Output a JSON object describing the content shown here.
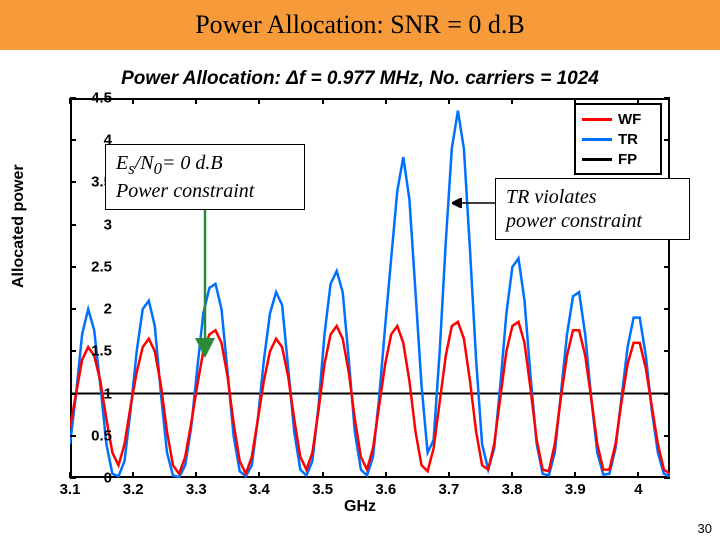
{
  "title": "Power Allocation: SNR = 0 d.B",
  "chart": {
    "title": "Power Allocation:  Δf = 0.977 MHz,   No. carriers = 1024",
    "ylabel": "Allocated power",
    "xlabel": "GHz",
    "xlim": [
      3.1,
      4.05
    ],
    "ylim": [
      0,
      4.5
    ],
    "xticks": [
      3.1,
      3.2,
      3.3,
      3.4,
      3.5,
      3.6,
      3.7,
      3.8,
      3.9,
      4.0
    ],
    "xtick_labels": [
      "3.1",
      "3.2",
      "3.3",
      "3.4",
      "3.5",
      "3.6",
      "3.7",
      "3.8",
      "3.9",
      "4"
    ],
    "yticks": [
      0,
      0.5,
      1,
      1.5,
      2,
      2.5,
      3,
      3.5,
      4,
      4.5
    ],
    "ytick_labels": [
      "0",
      "0.5",
      "1",
      "1.5",
      "2",
      "2.5",
      "3",
      "3.5",
      "4",
      "4.5"
    ],
    "background_color": "#ffffff",
    "series": {
      "WF": {
        "label": "WF",
        "color": "#ff0000",
        "width": 2.5,
        "y": [
          0.6,
          1.0,
          1.4,
          1.55,
          1.45,
          1.15,
          0.7,
          0.3,
          0.15,
          0.4,
          0.85,
          1.25,
          1.55,
          1.65,
          1.5,
          1.1,
          0.55,
          0.15,
          0.05,
          0.25,
          0.65,
          1.1,
          1.5,
          1.7,
          1.75,
          1.6,
          1.2,
          0.65,
          0.2,
          0.05,
          0.25,
          0.7,
          1.15,
          1.5,
          1.65,
          1.55,
          1.2,
          0.7,
          0.25,
          0.1,
          0.3,
          0.8,
          1.35,
          1.7,
          1.8,
          1.65,
          1.25,
          0.7,
          0.25,
          0.1,
          0.35,
          0.85,
          1.35,
          1.7,
          1.8,
          1.6,
          1.15,
          0.55,
          0.15,
          0.08,
          0.35,
          0.9,
          1.45,
          1.8,
          1.85,
          1.65,
          1.15,
          0.55,
          0.15,
          0.1,
          0.4,
          0.95,
          1.5,
          1.8,
          1.85,
          1.6,
          1.05,
          0.45,
          0.1,
          0.08,
          0.4,
          0.95,
          1.45,
          1.75,
          1.75,
          1.45,
          0.95,
          0.4,
          0.1,
          0.1,
          0.4,
          0.9,
          1.35,
          1.6,
          1.6,
          1.3,
          0.85,
          0.4,
          0.1,
          0.05
        ]
      },
      "TR": {
        "label": "TR",
        "color": "#0070ff",
        "width": 2.5,
        "y": [
          0.4,
          1.0,
          1.7,
          2.0,
          1.75,
          1.1,
          0.4,
          0.05,
          0.02,
          0.2,
          0.8,
          1.5,
          2.0,
          2.1,
          1.8,
          1.0,
          0.3,
          0.03,
          0.01,
          0.15,
          0.6,
          1.3,
          1.95,
          2.25,
          2.3,
          2.0,
          1.25,
          0.5,
          0.08,
          0.02,
          0.15,
          0.7,
          1.4,
          1.95,
          2.2,
          2.05,
          1.3,
          0.55,
          0.1,
          0.03,
          0.2,
          0.85,
          1.7,
          2.3,
          2.45,
          2.2,
          1.4,
          0.55,
          0.1,
          0.03,
          0.25,
          0.95,
          1.8,
          2.6,
          3.4,
          3.8,
          3.3,
          2.2,
          1.1,
          0.3,
          0.45,
          1.5,
          2.8,
          3.9,
          4.35,
          3.9,
          2.7,
          1.4,
          0.4,
          0.1,
          0.35,
          1.1,
          1.95,
          2.5,
          2.6,
          2.1,
          1.2,
          0.4,
          0.05,
          0.03,
          0.3,
          1.0,
          1.7,
          2.15,
          2.2,
          1.7,
          0.95,
          0.3,
          0.04,
          0.05,
          0.35,
          0.95,
          1.55,
          1.9,
          1.9,
          1.45,
          0.8,
          0.3,
          0.05,
          0.02
        ]
      },
      "FP": {
        "label": "FP",
        "color": "#000000",
        "width": 2,
        "y_const": 1.0
      }
    },
    "legend": {
      "items": [
        {
          "label": "WF",
          "color": "#ff0000"
        },
        {
          "label": "TR",
          "color": "#0070ff"
        },
        {
          "label": "FP",
          "color": "#000000"
        }
      ]
    }
  },
  "annotations": {
    "constraint": {
      "line1": "E",
      "line1_sub": "s",
      "line1_mid": "/N",
      "line1_sub2": "0",
      "line1_end": "= 0 d.B",
      "line2": "Power constraint"
    },
    "violation": {
      "line1": "TR violates",
      "line2": "power constraint"
    }
  },
  "page_num": "30"
}
